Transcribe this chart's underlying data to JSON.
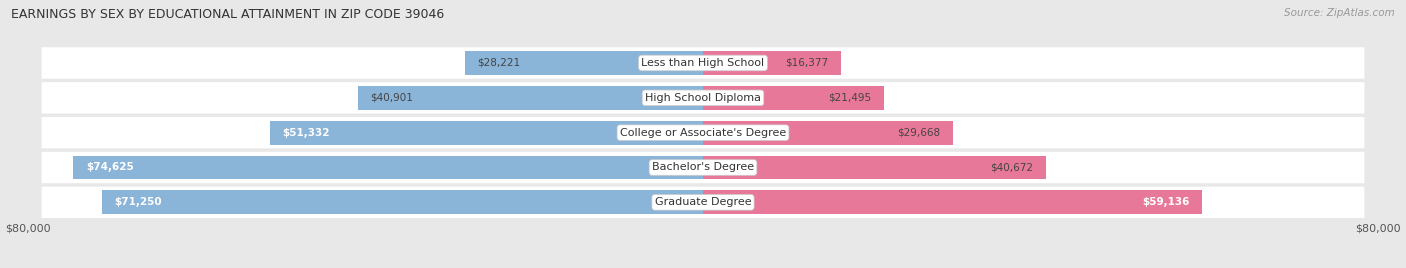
{
  "title": "EARNINGS BY SEX BY EDUCATIONAL ATTAINMENT IN ZIP CODE 39046",
  "source": "Source: ZipAtlas.com",
  "categories": [
    "Less than High School",
    "High School Diploma",
    "College or Associate's Degree",
    "Bachelor's Degree",
    "Graduate Degree"
  ],
  "male_values": [
    28221,
    40901,
    51332,
    74625,
    71250
  ],
  "female_values": [
    16377,
    21495,
    29668,
    40672,
    59136
  ],
  "male_color": "#8ab4d8",
  "female_color": "#e8789a",
  "max_val": 80000,
  "bg_color": "#e8e8e8",
  "row_bg_light": "#f5f5f5",
  "row_bg_dark": "#e0e0e0"
}
